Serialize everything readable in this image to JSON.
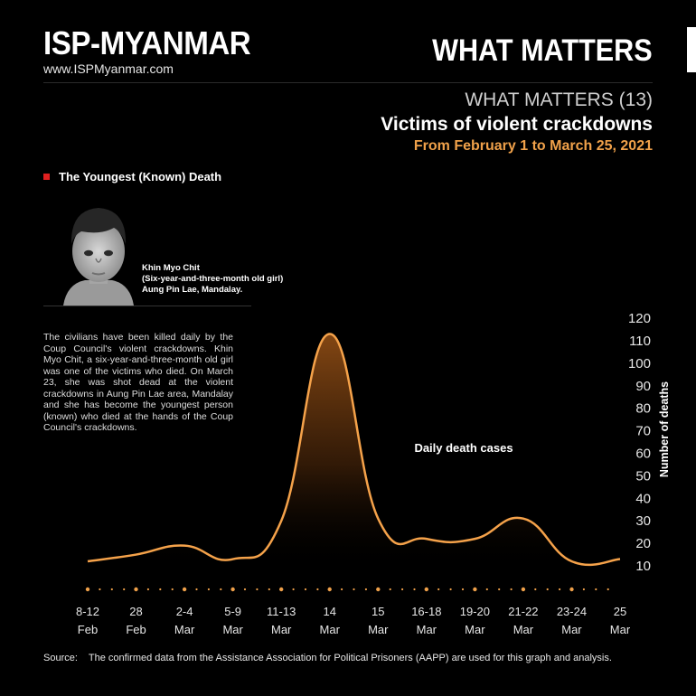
{
  "brand": {
    "name": "ISP-MYANMAR",
    "url": "www.ISPMyanmar.com"
  },
  "series_name": "WHAT MATTERS",
  "header": {
    "issue": "WHAT MATTERS (13)",
    "title": "Victims of violent crackdowns",
    "subtitle": "From February 1 to March 25, 2021"
  },
  "section": {
    "title": "The Youngest (Known) Death"
  },
  "victim": {
    "name": "Khin Myo Chit",
    "age": "(Six-year-and-three-month old girl)",
    "place": "Aung Pin Lae, Mandalay."
  },
  "story": "The civilians have been killed daily by the Coup Council's violent crackdowns. Khin Myo Chit, a six-year-and-three-month old girl was one of the victims who died. On March 23, she was shot dead at the violent crackdowns in Aung Pin Lae area, Mandalay and she has become the youngest person (known) who died at the hands of the Coup Council's crackdowns.",
  "source": {
    "label": "Source:",
    "text": "The confirmed data from the Assistance Association for Political Prisoners (AAPP) are used for this graph and analysis."
  },
  "colors": {
    "accent": "#f0a14a",
    "line": "#f5a24a",
    "marker": "#e02020"
  },
  "chart_data": {
    "type": "area",
    "annotation": "Daily death cases",
    "ylabel": "Number of deaths",
    "yticks": [
      10,
      20,
      30,
      40,
      50,
      60,
      70,
      80,
      90,
      100,
      110,
      120
    ],
    "categories": [
      [
        "8-12",
        "Feb"
      ],
      [
        "28",
        "Feb"
      ],
      [
        "2-4",
        "Mar"
      ],
      [
        "5-9",
        "Mar"
      ],
      [
        "11-13",
        "Mar"
      ],
      [
        "14",
        "Mar"
      ],
      [
        "15",
        "Mar"
      ],
      [
        "16-18",
        "Mar"
      ],
      [
        "19-20",
        "Mar"
      ],
      [
        "21-22",
        "Mar"
      ],
      [
        "23-24",
        "Mar"
      ],
      [
        "25",
        "Mar"
      ]
    ],
    "values": [
      12,
      15,
      19,
      13,
      30,
      113,
      31,
      22,
      22,
      31,
      12,
      13
    ],
    "legend": "none",
    "grid": false
  }
}
